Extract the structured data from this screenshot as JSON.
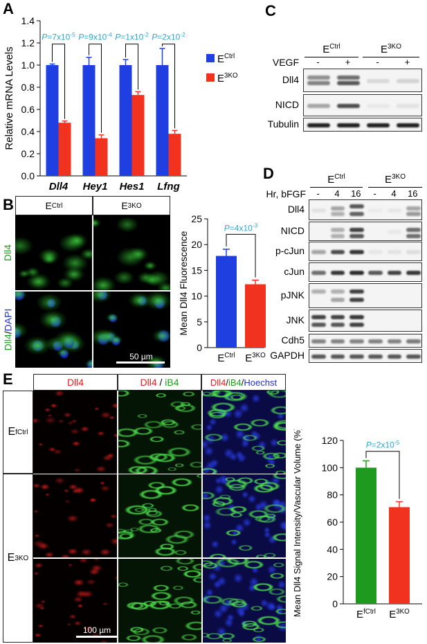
{
  "panels": {
    "A": "A",
    "B": "B",
    "C": "C",
    "D": "D",
    "E": "E"
  },
  "A": {
    "chart_data": {
      "type": "bar",
      "categories": [
        "Dll4",
        "Hey1",
        "Hes1",
        "Lfng"
      ],
      "series": [
        {
          "name": "ECtrl",
          "values": [
            1.0,
            1.0,
            1.0,
            1.0
          ],
          "errors": [
            0.01,
            0.07,
            0.05,
            0.15
          ],
          "color": "#1f3fe0"
        },
        {
          "name": "E3KO",
          "values": [
            0.48,
            0.34,
            0.73,
            0.38
          ],
          "errors": [
            0.015,
            0.03,
            0.03,
            0.03
          ],
          "color": "#f0321e"
        }
      ],
      "ylabel": "Relative mRNA Levels",
      "ylim": [
        0,
        1.4
      ],
      "yticks": [
        "0.0",
        "0.2",
        "0.4",
        "0.6",
        "0.8",
        "1.0",
        "1.2",
        "1.4"
      ],
      "pvalues": [
        {
          "mant": "P=7x10",
          "exp": "-5"
        },
        {
          "mant": "P=9x10",
          "exp": "-4"
        },
        {
          "mant": "P=1x10",
          "exp": "-2"
        },
        {
          "mant": "P=2x10",
          "exp": "-2"
        }
      ],
      "legend": [
        {
          "base": "E",
          "sup": "Ctrl",
          "color": "#1f3fe0"
        },
        {
          "base": "E",
          "sup": "3KO",
          "color": "#f0321e"
        }
      ]
    }
  },
  "B": {
    "col_headers": [
      {
        "base": "E",
        "sup": "Ctrl"
      },
      {
        "base": "E",
        "sup": "3KO"
      }
    ],
    "row_label_top": "Dll4",
    "row_label_bottom_a": "Dll4",
    "row_label_bottom_sep": "/",
    "row_label_bottom_b": "DAPI",
    "scalebar": "50 µm",
    "chart_data": {
      "type": "bar",
      "categories": [
        "ECtrl",
        "E3KO"
      ],
      "values": [
        17.8,
        12.3
      ],
      "errors": [
        1.3,
        0.8
      ],
      "colors": [
        "#1f3fe0",
        "#f0321e"
      ],
      "xlabels": [
        {
          "base": "E",
          "sup": "Ctrl"
        },
        {
          "base": "E",
          "sup": "3KO"
        }
      ],
      "ylabel": "Mean Dll4 Fluorescence",
      "ylim": [
        0,
        25
      ],
      "yticks": [
        "0",
        "5",
        "10",
        "15",
        "20",
        "25"
      ],
      "pvalue": {
        "mant": "P=4x10",
        "exp": "-3"
      }
    }
  },
  "C": {
    "headers": [
      {
        "base": "E",
        "sup": "Ctrl"
      },
      {
        "base": "E",
        "sup": "3KO"
      }
    ],
    "treatment": "VEGF",
    "signs": [
      "-",
      "+",
      "-",
      "+"
    ],
    "rows": [
      "Dll4",
      "NICD",
      "Tubulin"
    ]
  },
  "D": {
    "headers": [
      {
        "base": "E",
        "sup": "Ctrl"
      },
      {
        "base": "E",
        "sup": "3KO"
      }
    ],
    "treatment": "Hr, bFGF",
    "times": [
      "-",
      "4",
      "16",
      "-",
      "4",
      "16"
    ],
    "rows": [
      "Dll4",
      "NICD",
      "p-cJun",
      "cJun",
      "pJNK",
      "JNK",
      "Cdh5",
      "GAPDH"
    ]
  },
  "E": {
    "col1": "Dll4",
    "col2_a": "Dll4",
    "col2_sep": " / ",
    "col2_b": "iB4",
    "col3_a": "Dll4",
    "col3_sep1": "/",
    "col3_b": "iB4",
    "col3_sep2": "/",
    "col3_c": "Hoechst",
    "row1": {
      "base": "E",
      "sup": "fCtrl"
    },
    "row2": {
      "base": "E",
      "sup": "3KO"
    },
    "scalebar": "100 µm",
    "chart_data": {
      "type": "bar",
      "categories": [
        "EfCtrl",
        "E3KO"
      ],
      "values": [
        100,
        71
      ],
      "errors": [
        5,
        4
      ],
      "colors": [
        "#1e9a1e",
        "#f0321e"
      ],
      "xlabels": [
        {
          "base": "E",
          "sup": "fCtrl"
        },
        {
          "base": "E",
          "sup": "3KO"
        }
      ],
      "ylabel": "Mean Dll4 Signal Intensity/Vascular Volume (%)",
      "ylim": [
        0,
        120
      ],
      "yticks": [
        "0",
        "20",
        "40",
        "60",
        "80",
        "100",
        "120"
      ],
      "pvalue": {
        "mant": "P=2x10",
        "exp": "-5"
      }
    }
  },
  "colors": {
    "blue": "#1f3fe0",
    "red": "#f0321e",
    "green": "#1e9a1e",
    "pval": "#29a9d6"
  }
}
